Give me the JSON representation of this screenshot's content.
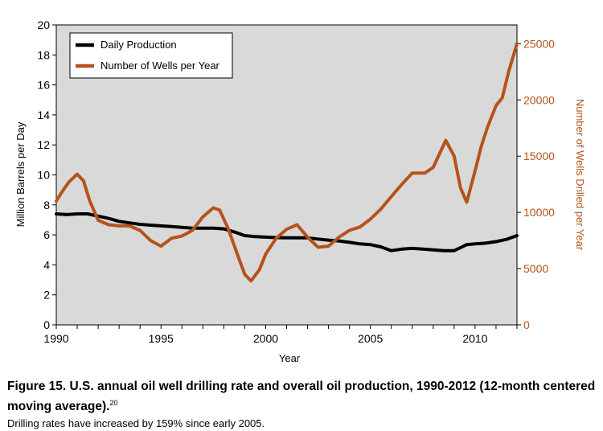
{
  "chart_data": {
    "type": "line",
    "xlabel": "Year",
    "ylabel": "Million Barrels per Day",
    "y2label": "Number of Wells Drilled per Year",
    "xlim": [
      1990,
      2012
    ],
    "ylim": [
      0,
      20
    ],
    "y2lim": [
      0,
      26667
    ],
    "x_ticks": [
      "1990",
      "1995",
      "2000",
      "2005",
      "2010"
    ],
    "y_ticks": [
      "0",
      "2",
      "4",
      "6",
      "8",
      "10",
      "12",
      "14",
      "16",
      "18",
      "20"
    ],
    "y2_ticks": [
      "0",
      "5000",
      "10000",
      "15000",
      "20000",
      "25000"
    ],
    "legend_position": "top-left",
    "series": [
      {
        "name": "Daily Production",
        "axis": "left",
        "color": "#000000",
        "x": [
          1990,
          1990.5,
          1991,
          1991.5,
          1992,
          1992.5,
          1993,
          1993.5,
          1994,
          1994.5,
          1995,
          1995.5,
          1996,
          1996.5,
          1997,
          1997.5,
          1998,
          1998.5,
          1999,
          1999.5,
          2000,
          2000.5,
          2001,
          2001.5,
          2002,
          2002.5,
          2003,
          2003.5,
          2004,
          2004.5,
          2005,
          2005.5,
          2006,
          2006.5,
          2007,
          2007.5,
          2008,
          2008.5,
          2009,
          2009.3,
          2009.6,
          2010,
          2010.5,
          2011,
          2011.5,
          2012
        ],
        "values": [
          7.4,
          7.35,
          7.4,
          7.4,
          7.25,
          7.1,
          6.9,
          6.8,
          6.7,
          6.65,
          6.6,
          6.55,
          6.5,
          6.45,
          6.45,
          6.45,
          6.4,
          6.2,
          5.95,
          5.88,
          5.85,
          5.82,
          5.8,
          5.8,
          5.8,
          5.72,
          5.65,
          5.6,
          5.5,
          5.4,
          5.35,
          5.2,
          4.95,
          5.05,
          5.1,
          5.05,
          5.0,
          4.95,
          4.95,
          5.15,
          5.35,
          5.4,
          5.45,
          5.55,
          5.7,
          5.95
        ]
      },
      {
        "name": "Number of Wells per Year",
        "axis": "right",
        "color": "#b5531c",
        "x": [
          1990,
          1990.3,
          1990.6,
          1991,
          1991.3,
          1991.6,
          1992,
          1992.5,
          1993,
          1993.5,
          1994,
          1994.5,
          1995,
          1995.5,
          1996,
          1996.5,
          1997,
          1997.5,
          1997.8,
          1998.2,
          1998.7,
          1999,
          1999.3,
          1999.7,
          2000,
          2000.5,
          2001,
          2001.5,
          2002,
          2002.5,
          2003,
          2003.5,
          2004,
          2004.5,
          2005,
          2005.5,
          2006,
          2006.5,
          2007,
          2007.3,
          2007.6,
          2008,
          2008.3,
          2008.6,
          2009,
          2009.3,
          2009.6,
          2010,
          2010.3,
          2010.6,
          2011,
          2011.3,
          2011.6,
          2012
        ],
        "values": [
          11000,
          11900,
          12700,
          13400,
          12800,
          11000,
          9300,
          8900,
          8800,
          8800,
          8400,
          7500,
          7000,
          7700,
          7900,
          8400,
          9600,
          10400,
          10200,
          8600,
          6000,
          4500,
          3900,
          4900,
          6300,
          7700,
          8500,
          8900,
          7800,
          6900,
          7000,
          7800,
          8400,
          8700,
          9400,
          10300,
          11400,
          12500,
          13500,
          13500,
          13500,
          14000,
          15200,
          16400,
          15000,
          12200,
          10900,
          13700,
          15900,
          17600,
          19500,
          20200,
          22500,
          25000
        ]
      }
    ]
  },
  "caption": {
    "title": "Figure 15. U.S. annual oil well drilling rate and overall oil production, 1990-2012 (12-month centered moving average).",
    "footnote": "20",
    "subtitle": "Drilling rates have increased by 159% since early 2005."
  }
}
